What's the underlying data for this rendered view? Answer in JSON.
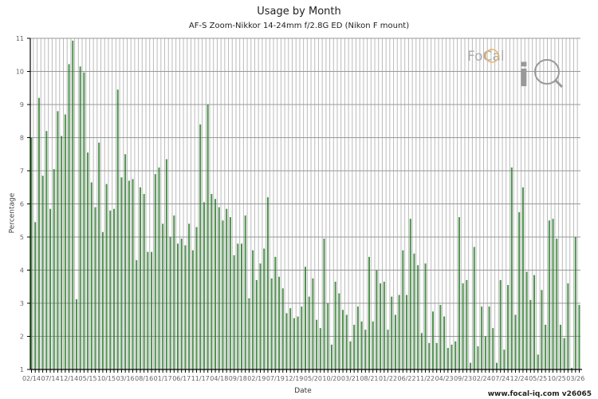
{
  "title": "Usage by Month",
  "subtitle": "AF-S Zoom-Nikkor 14-24mm f/2.8G ED (Nikon F mount)",
  "credit": "www.focal-iq.com  v26065",
  "logo": {
    "text": "FoCal iQ",
    "icon": "magnifier-aperture-icon"
  },
  "colors": {
    "bar": "#2e7d2e",
    "grid": "#bbbbbb"
  },
  "chart_data": {
    "type": "bar",
    "title": "Usage by Month",
    "subtitle": "AF-S Zoom-Nikkor 14-24mm f/2.8G ED (Nikon F mount)",
    "xlabel": "Date",
    "ylabel": "Percentage",
    "ylim": [
      1,
      11
    ],
    "yticks": [
      1,
      2,
      3,
      4,
      5,
      6,
      7,
      8,
      9,
      10,
      11
    ],
    "xtick_labels": [
      "02/14",
      "07/14",
      "12/14",
      "05/15",
      "10/15",
      "03/16",
      "08/16",
      "01/17",
      "06/17",
      "11/17",
      "04/18",
      "09/18",
      "02/19",
      "07/19",
      "12/19",
      "05/20",
      "10/20",
      "03/21",
      "08/21",
      "01/22",
      "06/22",
      "11/22",
      "04/23",
      "09/23",
      "02/24",
      "07/24",
      "12/24",
      "05/25",
      "10/25",
      "03/26"
    ],
    "x_start": "02/14",
    "x_end": "03/26",
    "grid": true,
    "values": [
      8.0,
      5.45,
      9.2,
      6.85,
      8.2,
      5.85,
      7.05,
      8.8,
      8.05,
      8.7,
      10.22,
      10.93,
      3.12,
      10.15,
      9.97,
      7.55,
      6.65,
      5.9,
      7.85,
      5.15,
      6.6,
      5.8,
      5.85,
      9.45,
      6.8,
      7.5,
      6.7,
      6.75,
      4.3,
      6.5,
      6.3,
      4.55,
      4.55,
      6.9,
      7.1,
      5.4,
      7.35,
      5.0,
      5.65,
      4.8,
      4.95,
      4.75,
      5.4,
      4.6,
      5.3,
      8.4,
      6.05,
      9.0,
      6.3,
      6.15,
      5.9,
      5.5,
      5.85,
      5.6,
      4.45,
      4.8,
      4.8,
      5.65,
      3.15,
      4.6,
      3.7,
      4.2,
      4.65,
      6.2,
      3.75,
      4.4,
      3.8,
      3.45,
      2.7,
      2.85,
      2.55,
      2.6,
      2.9,
      4.1,
      3.2,
      3.75,
      2.5,
      2.25,
      4.95,
      3.0,
      1.75,
      3.65,
      3.3,
      2.8,
      2.65,
      1.85,
      2.35,
      2.9,
      2.45,
      2.2,
      4.4,
      2.45,
      4.0,
      3.6,
      3.65,
      2.2,
      3.2,
      2.65,
      3.25,
      4.6,
      3.25,
      5.55,
      4.5,
      4.15,
      2.1,
      4.2,
      1.8,
      2.75,
      1.8,
      2.95,
      2.6,
      1.65,
      1.75,
      1.85,
      5.6,
      3.6,
      3.7,
      1.2,
      4.7,
      1.7,
      2.9,
      2.0,
      2.9,
      2.25,
      1.2,
      3.7,
      1.6,
      3.55,
      7.1,
      2.65,
      5.75,
      6.5,
      3.95,
      3.1,
      3.85,
      1.45,
      3.4,
      2.35,
      5.5,
      5.55,
      4.95,
      2.35,
      1.95,
      3.6,
      1.05,
      5.0,
      2.95
    ]
  }
}
